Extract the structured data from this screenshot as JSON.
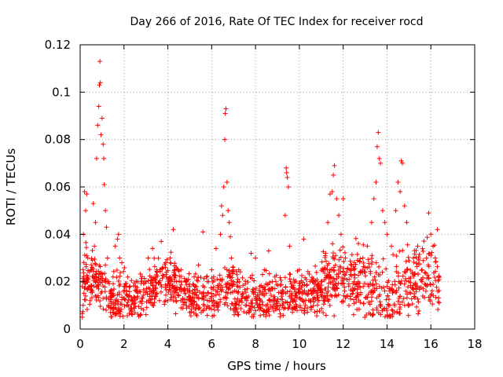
{
  "chart_data": {
    "type": "scatter",
    "title": "Day 266 of 2016, Rate Of TEC Index for receiver rocd",
    "xlabel": "GPS time / hours",
    "ylabel": "ROTI / TECUs",
    "xlim": [
      0,
      18
    ],
    "ylim": [
      0,
      0.12
    ],
    "xticks": [
      0,
      2,
      4,
      6,
      8,
      10,
      12,
      14,
      16,
      18
    ],
    "xtick_labels": [
      "0",
      "2",
      "4",
      "6",
      "8",
      "10",
      "12",
      "14",
      "16",
      "18"
    ],
    "yticks": [
      0,
      0.02,
      0.04,
      0.06,
      0.08,
      0.1,
      0.12
    ],
    "ytick_labels": [
      "0",
      "0.02",
      "0.04",
      "0.06",
      "0.08",
      "0.1",
      "0.12"
    ],
    "grid": true,
    "marker": "+",
    "color": "#ff0000",
    "series": [
      {
        "name": "ROTI",
        "points": [
          [
            0.1,
            0.018
          ],
          [
            0.15,
            0.04
          ],
          [
            0.2,
            0.058
          ],
          [
            0.25,
            0.05
          ],
          [
            0.3,
            0.057
          ],
          [
            0.35,
            0.03
          ],
          [
            0.4,
            0.018
          ],
          [
            0.45,
            0.012
          ],
          [
            0.5,
            0.025
          ],
          [
            0.55,
            0.016
          ],
          [
            0.6,
            0.053
          ],
          [
            0.65,
            0.035
          ],
          [
            0.7,
            0.045
          ],
          [
            0.75,
            0.072
          ],
          [
            0.8,
            0.086
          ],
          [
            0.85,
            0.094
          ],
          [
            0.88,
            0.103
          ],
          [
            0.9,
            0.113
          ],
          [
            0.92,
            0.104
          ],
          [
            0.95,
            0.082
          ],
          [
            1.0,
            0.089
          ],
          [
            1.05,
            0.078
          ],
          [
            1.08,
            0.072
          ],
          [
            1.1,
            0.061
          ],
          [
            1.15,
            0.05
          ],
          [
            1.2,
            0.043
          ],
          [
            1.25,
            0.03
          ],
          [
            1.3,
            0.02
          ],
          [
            1.4,
            0.015
          ],
          [
            1.5,
            0.022
          ],
          [
            1.6,
            0.035
          ],
          [
            1.7,
            0.038
          ],
          [
            1.75,
            0.04
          ],
          [
            1.8,
            0.03
          ],
          [
            1.9,
            0.028
          ],
          [
            2.0,
            0.018
          ],
          [
            2.2,
            0.014
          ],
          [
            2.4,
            0.012
          ],
          [
            2.6,
            0.016
          ],
          [
            2.8,
            0.013
          ],
          [
            3.0,
            0.02
          ],
          [
            3.1,
            0.03
          ],
          [
            3.3,
            0.034
          ],
          [
            3.5,
            0.025
          ],
          [
            3.7,
            0.037
          ],
          [
            3.9,
            0.028
          ],
          [
            4.1,
            0.03
          ],
          [
            4.25,
            0.042
          ],
          [
            4.4,
            0.02
          ],
          [
            4.6,
            0.025
          ],
          [
            4.8,
            0.015
          ],
          [
            5.0,
            0.018
          ],
          [
            5.2,
            0.022
          ],
          [
            5.4,
            0.027
          ],
          [
            5.6,
            0.041
          ],
          [
            5.8,
            0.02
          ],
          [
            6.0,
            0.025
          ],
          [
            6.2,
            0.034
          ],
          [
            6.4,
            0.04
          ],
          [
            6.45,
            0.052
          ],
          [
            6.5,
            0.048
          ],
          [
            6.55,
            0.06
          ],
          [
            6.6,
            0.08
          ],
          [
            6.62,
            0.091
          ],
          [
            6.65,
            0.093
          ],
          [
            6.7,
            0.062
          ],
          [
            6.75,
            0.05
          ],
          [
            6.8,
            0.045
          ],
          [
            6.85,
            0.039
          ],
          [
            6.9,
            0.03
          ],
          [
            7.0,
            0.02
          ],
          [
            7.2,
            0.018
          ],
          [
            7.4,
            0.015
          ],
          [
            7.6,
            0.012
          ],
          [
            7.8,
            0.032
          ],
          [
            8.0,
            0.03
          ],
          [
            8.2,
            0.018
          ],
          [
            8.4,
            0.025
          ],
          [
            8.6,
            0.033
          ],
          [
            8.8,
            0.012
          ],
          [
            9.0,
            0.01
          ],
          [
            9.2,
            0.015
          ],
          [
            9.35,
            0.048
          ],
          [
            9.4,
            0.068
          ],
          [
            9.42,
            0.066
          ],
          [
            9.45,
            0.064
          ],
          [
            9.5,
            0.06
          ],
          [
            9.55,
            0.035
          ],
          [
            9.6,
            0.02
          ],
          [
            9.8,
            0.014
          ],
          [
            10.0,
            0.025
          ],
          [
            10.2,
            0.038
          ],
          [
            10.4,
            0.015
          ],
          [
            10.6,
            0.02
          ],
          [
            10.8,
            0.018
          ],
          [
            11.0,
            0.02
          ],
          [
            11.1,
            0.025
          ],
          [
            11.2,
            0.032
          ],
          [
            11.3,
            0.045
          ],
          [
            11.4,
            0.057
          ],
          [
            11.5,
            0.058
          ],
          [
            11.55,
            0.065
          ],
          [
            11.6,
            0.069
          ],
          [
            11.7,
            0.055
          ],
          [
            11.8,
            0.048
          ],
          [
            11.9,
            0.04
          ],
          [
            12.0,
            0.055
          ],
          [
            12.1,
            0.03
          ],
          [
            12.3,
            0.025
          ],
          [
            12.5,
            0.02
          ],
          [
            12.7,
            0.018
          ],
          [
            12.9,
            0.03
          ],
          [
            13.1,
            0.035
          ],
          [
            13.3,
            0.045
          ],
          [
            13.4,
            0.055
          ],
          [
            13.5,
            0.062
          ],
          [
            13.55,
            0.077
          ],
          [
            13.6,
            0.083
          ],
          [
            13.65,
            0.072
          ],
          [
            13.7,
            0.07
          ],
          [
            13.8,
            0.05
          ],
          [
            13.9,
            0.045
          ],
          [
            14.0,
            0.04
          ],
          [
            14.2,
            0.035
          ],
          [
            14.4,
            0.05
          ],
          [
            14.5,
            0.062
          ],
          [
            14.6,
            0.058
          ],
          [
            14.65,
            0.071
          ],
          [
            14.7,
            0.07
          ],
          [
            14.8,
            0.052
          ],
          [
            14.9,
            0.045
          ],
          [
            15.0,
            0.02
          ],
          [
            15.2,
            0.03
          ],
          [
            15.4,
            0.035
          ],
          [
            15.6,
            0.025
          ],
          [
            15.8,
            0.03
          ],
          [
            15.9,
            0.049
          ],
          [
            16.0,
            0.04
          ],
          [
            16.1,
            0.035
          ],
          [
            16.2,
            0.03
          ],
          [
            16.3,
            0.042
          ]
        ]
      }
    ],
    "annotation": "dense cluster of ROTI values between ~0.005 and ~0.035 TECUs across 0.1–16.4 h"
  }
}
